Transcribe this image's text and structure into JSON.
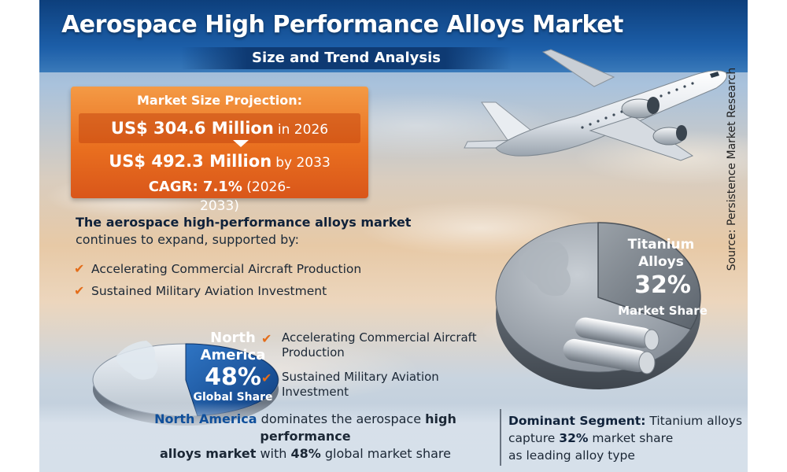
{
  "header": {
    "title": "Aerospace High Performance Alloys Market",
    "subtitle": "Size and Trend Analysis"
  },
  "source": "Source: Persistence Market Research",
  "market": {
    "label": "Market Size Projection:",
    "row1_value": "US$ 304.6 Million",
    "row1_suffix": "in 2026",
    "row2_value": "US$ 492.3 Million",
    "row2_suffix": "by 2033",
    "cagr_label": "CAGR: 7.1%",
    "cagr_period": "(2026-2033)"
  },
  "intro": {
    "bold": "The aerospace high-performance alloys market",
    "rest": "continues to expand, supported by:"
  },
  "drivers": [
    "Accelerating Commercial Aircraft Production",
    "Sustained Military Aviation Investment"
  ],
  "drivers_repeat": [
    "Accelerating Commercial Aircraft Production",
    "Sustained Military Aviation Investment"
  ],
  "north_america": {
    "line1": "North",
    "line2": "America",
    "share": "48%",
    "label": "Global Share",
    "share_fraction": 0.48
  },
  "titanium": {
    "line1": "Titanium",
    "line2": "Alloys",
    "share": "32%",
    "label": "Market Share",
    "share_fraction": 0.32
  },
  "bottom_left": {
    "hl": "North America",
    "text1": "dominates the aerospace",
    "hl2": "high performance",
    "hl3": "alloys market",
    "text2": "with",
    "hl4": "48%",
    "text3": "global market share"
  },
  "bottom_right": {
    "label": "Dominant Segment:",
    "text1": "Titanium alloys",
    "text2": "capture",
    "value": "32%",
    "text3": "market share",
    "text4": "as leading alloy type"
  },
  "colors": {
    "accent_orange": "#e96f1f",
    "banner_blue": "#1c5ea8",
    "highlight_blue": "#0f4f9b"
  }
}
